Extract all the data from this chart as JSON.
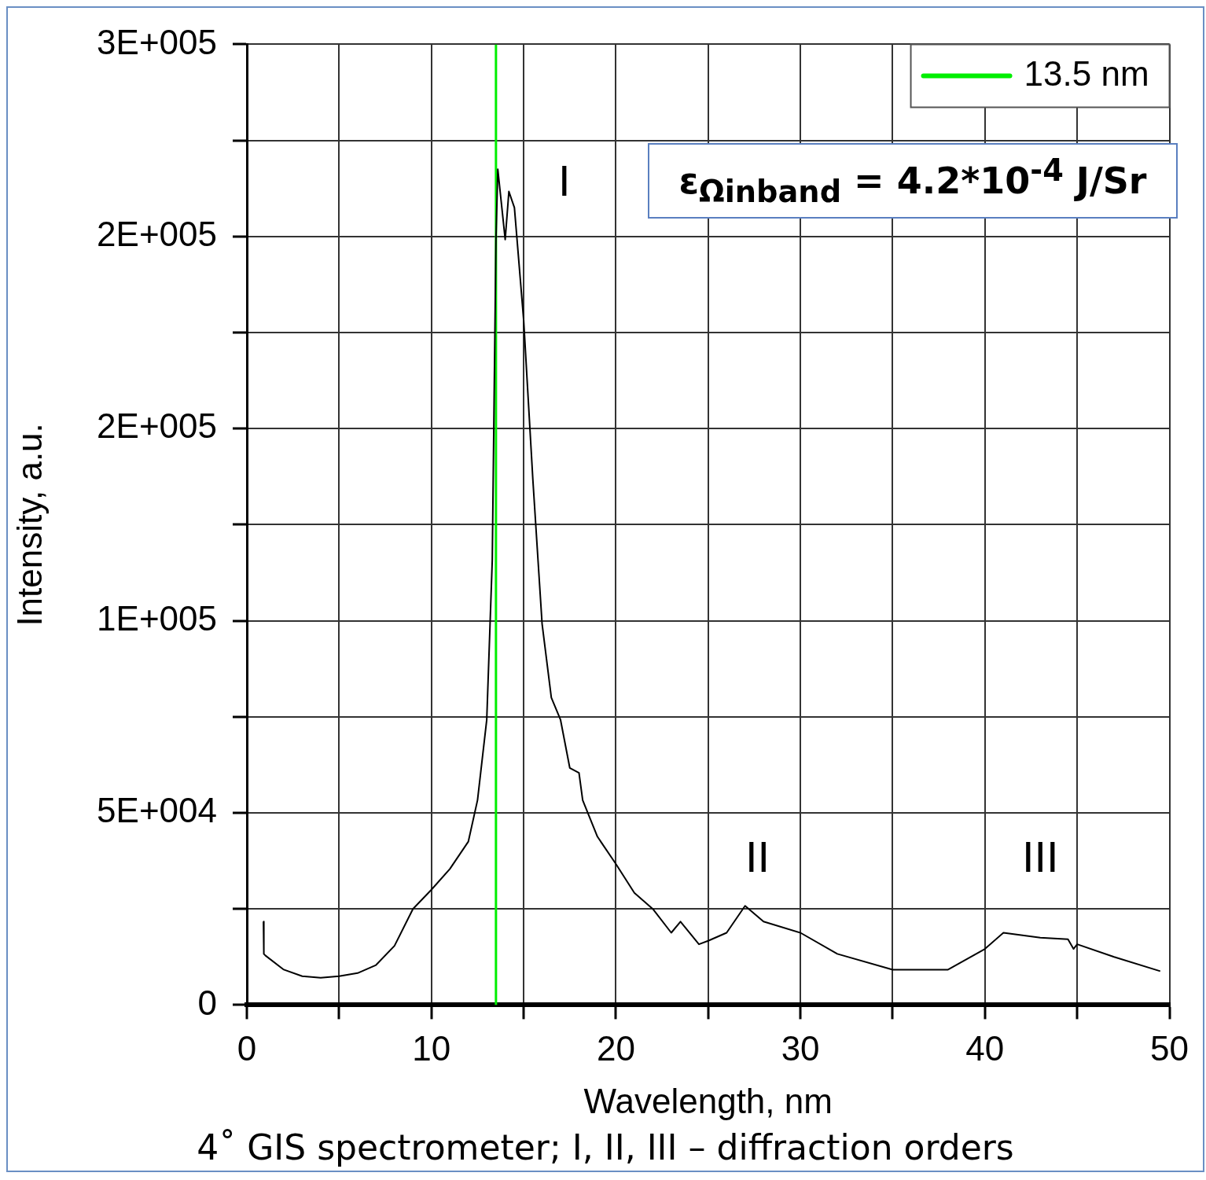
{
  "chart_data": {
    "type": "line",
    "xlabel": "Wavelength, nm",
    "ylabel": "Intensity, a.u.",
    "xlim": [
      0,
      50
    ],
    "ylim": [
      0,
      250000
    ],
    "xticks": [
      0,
      {
        "value": 5,
        "label": null
      },
      10,
      {
        "value": 15,
        "label": null
      },
      20,
      {
        "value": 25,
        "label": null
      },
      30,
      {
        "value": 35,
        "label": null
      },
      40,
      {
        "value": 45,
        "label": null
      },
      50
    ],
    "yticks": [
      0,
      {
        "value": 25000,
        "label": null
      },
      {
        "value": 50000,
        "label": "5E+004"
      },
      {
        "value": 75000,
        "label": null
      },
      {
        "value": 100000,
        "label": "1E+005"
      },
      {
        "value": 125000,
        "label": null
      },
      {
        "value": 150000,
        "label": "2E+005"
      },
      {
        "value": 175000,
        "label": null
      },
      {
        "value": 200000,
        "label": "2E+005"
      },
      {
        "value": 225000,
        "label": null
      },
      {
        "value": 250000,
        "label": "3E+005"
      }
    ],
    "grid": true,
    "legend": "top right",
    "series": [
      {
        "color": "#000000",
        "x": [
          0.9,
          0.92,
          1,
          2,
          3,
          4,
          5,
          6,
          7,
          8,
          9,
          10,
          11,
          12,
          12.5,
          13,
          13.3,
          13.5,
          13.6,
          14,
          14.2,
          14.5,
          15,
          15.5,
          16,
          16.5,
          17,
          17.5,
          18,
          18.2,
          19,
          20,
          21,
          22,
          23,
          23.5,
          24.5,
          25,
          26,
          27,
          28,
          30,
          32,
          35,
          38,
          40,
          41,
          43,
          44.5,
          44.8,
          45,
          47,
          49.5
        ],
        "values": [
          21700,
          13300,
          12900,
          9200,
          7500,
          7100,
          7500,
          8300,
          10400,
          15400,
          25000,
          30000,
          35400,
          42500,
          53300,
          74200,
          115800,
          199200,
          217500,
          199200,
          211700,
          207500,
          178300,
          136700,
          99200,
          80000,
          74200,
          61700,
          60400,
          53300,
          43800,
          36700,
          29200,
          25000,
          18800,
          21700,
          15800,
          16700,
          18800,
          25800,
          21700,
          18800,
          13300,
          9200,
          9200,
          14600,
          18800,
          17500,
          17100,
          14600,
          15800,
          12500,
          8800
        ]
      },
      {
        "name": "13.5 nm",
        "color": "#00ee00",
        "x": [
          13.5,
          13.5
        ],
        "values": [
          0,
          250000
        ]
      }
    ],
    "annotations": [
      "I",
      "II",
      "III",
      "ε$_{Ωinband}$ = 4.2*10$^{-4}$ J/Sr",
      "4˚ GIS spectrometer; I, II, III – diffraction orders"
    ]
  }
}
